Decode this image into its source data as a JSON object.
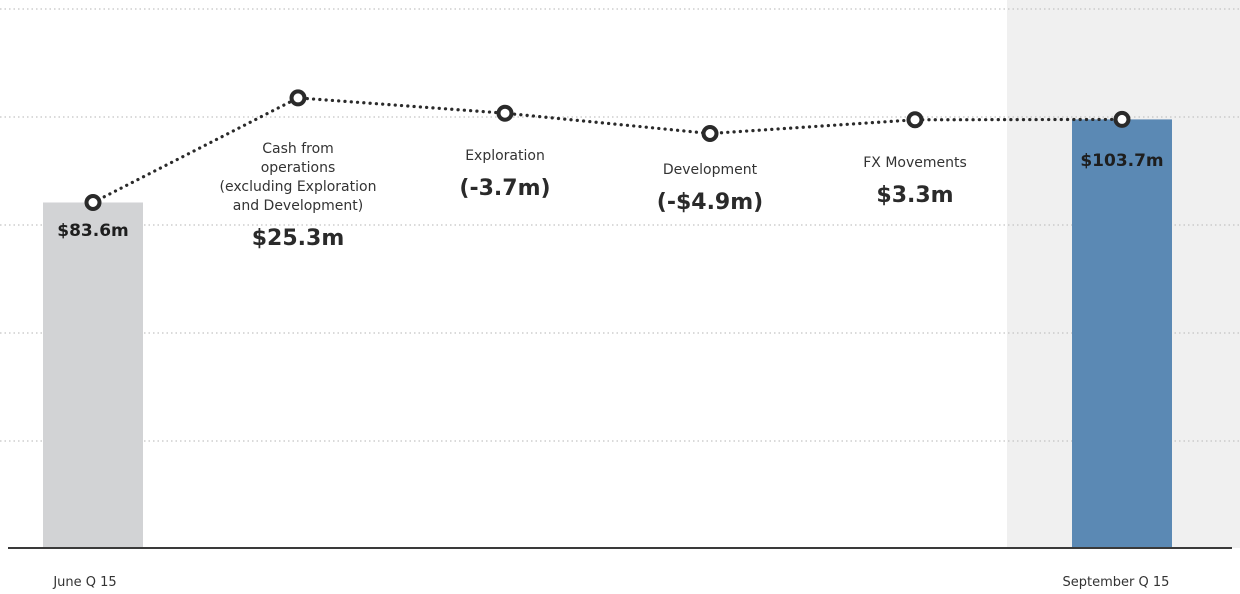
{
  "colors": {
    "start_bar": "#d2d3d5",
    "end_bar": "#5b89b4",
    "highlight_band": "#f0f0f0",
    "connector": "#2a2a2a"
  },
  "chart_data": {
    "type": "waterfall",
    "title": "",
    "xlabel": "",
    "ylabel": "",
    "ylim": [
      0,
      110
    ],
    "grid": true,
    "legend": "none",
    "start": {
      "label": "June Q 15",
      "value": 83.6,
      "value_label": "$83.6m"
    },
    "end": {
      "label": "September Q 15",
      "value": 103.7,
      "value_label": "$103.7m"
    },
    "steps": [
      {
        "label_lines": [
          "Cash from",
          "operations",
          "(excluding Exploration",
          "and Development)"
        ],
        "value": 25.3,
        "value_label": "$25.3m"
      },
      {
        "label_lines": [
          "Exploration"
        ],
        "value": -3.7,
        "value_label": "(-3.7m)"
      },
      {
        "label_lines": [
          "Development"
        ],
        "value": -4.9,
        "value_label": "(-$4.9m)"
      },
      {
        "label_lines": [
          "FX Movements"
        ],
        "value": 3.3,
        "value_label": "$3.3m"
      }
    ]
  }
}
